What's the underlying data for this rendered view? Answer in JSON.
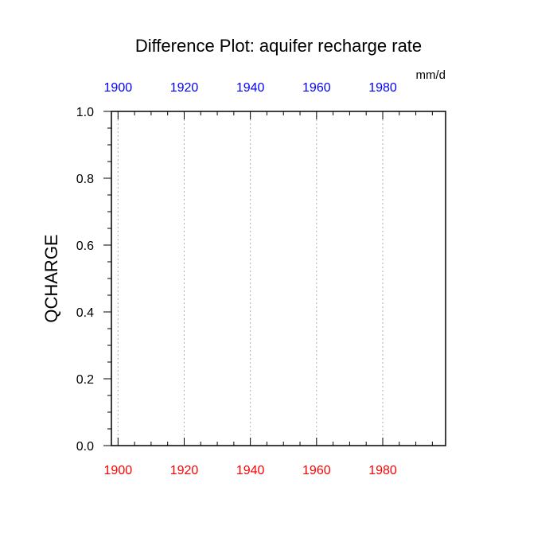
{
  "chart_data": {
    "type": "line",
    "title": "Difference Plot: aquifer recharge rate",
    "units": "mm/d",
    "ylabel": "QCHARGE",
    "xlim": [
      1898,
      1999
    ],
    "ylim": [
      0,
      1
    ],
    "x_ticks": [
      1900,
      1920,
      1940,
      1960,
      1980
    ],
    "y_ticks": [
      "0.0",
      "0.2",
      "0.4",
      "0.6",
      "0.8",
      "1.0"
    ],
    "y_tick_values": [
      0,
      0.2,
      0.4,
      0.6,
      0.8,
      1.0
    ],
    "x_minor_step": 5,
    "y_minor_step": 0.05,
    "grid": "vertical dotted at major x ticks",
    "bottom_tick_color": "#ff0000",
    "top_tick_color": "#0000ff",
    "series": []
  }
}
